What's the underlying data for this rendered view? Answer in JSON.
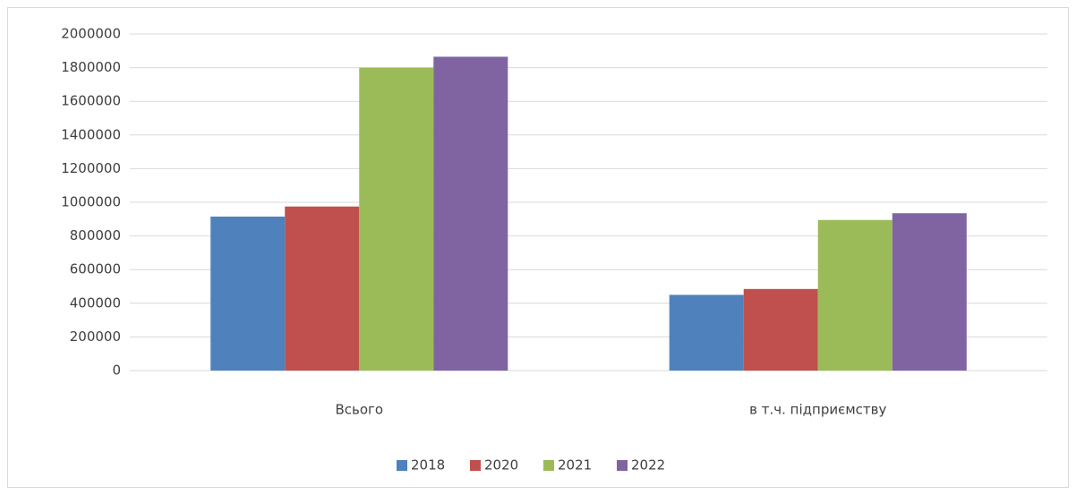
{
  "chart_data": {
    "type": "bar",
    "categories": [
      "Всього",
      "в т.ч. підприємству"
    ],
    "series": [
      {
        "name": "2018",
        "color": "#4f81bd",
        "values": [
          915000,
          450000
        ]
      },
      {
        "name": "2020",
        "color": "#c0504d",
        "values": [
          975000,
          485000
        ]
      },
      {
        "name": "2021",
        "color": "#9bbb59",
        "values": [
          1800000,
          895000
        ]
      },
      {
        "name": "2022",
        "color": "#8064a2",
        "values": [
          1865000,
          935000
        ]
      }
    ],
    "ylim": [
      0,
      2000000
    ],
    "yticks": [
      0,
      200000,
      400000,
      600000,
      800000,
      1000000,
      1200000,
      1400000,
      1600000,
      1800000,
      2000000
    ],
    "grid": true,
    "legend": "bottom"
  }
}
